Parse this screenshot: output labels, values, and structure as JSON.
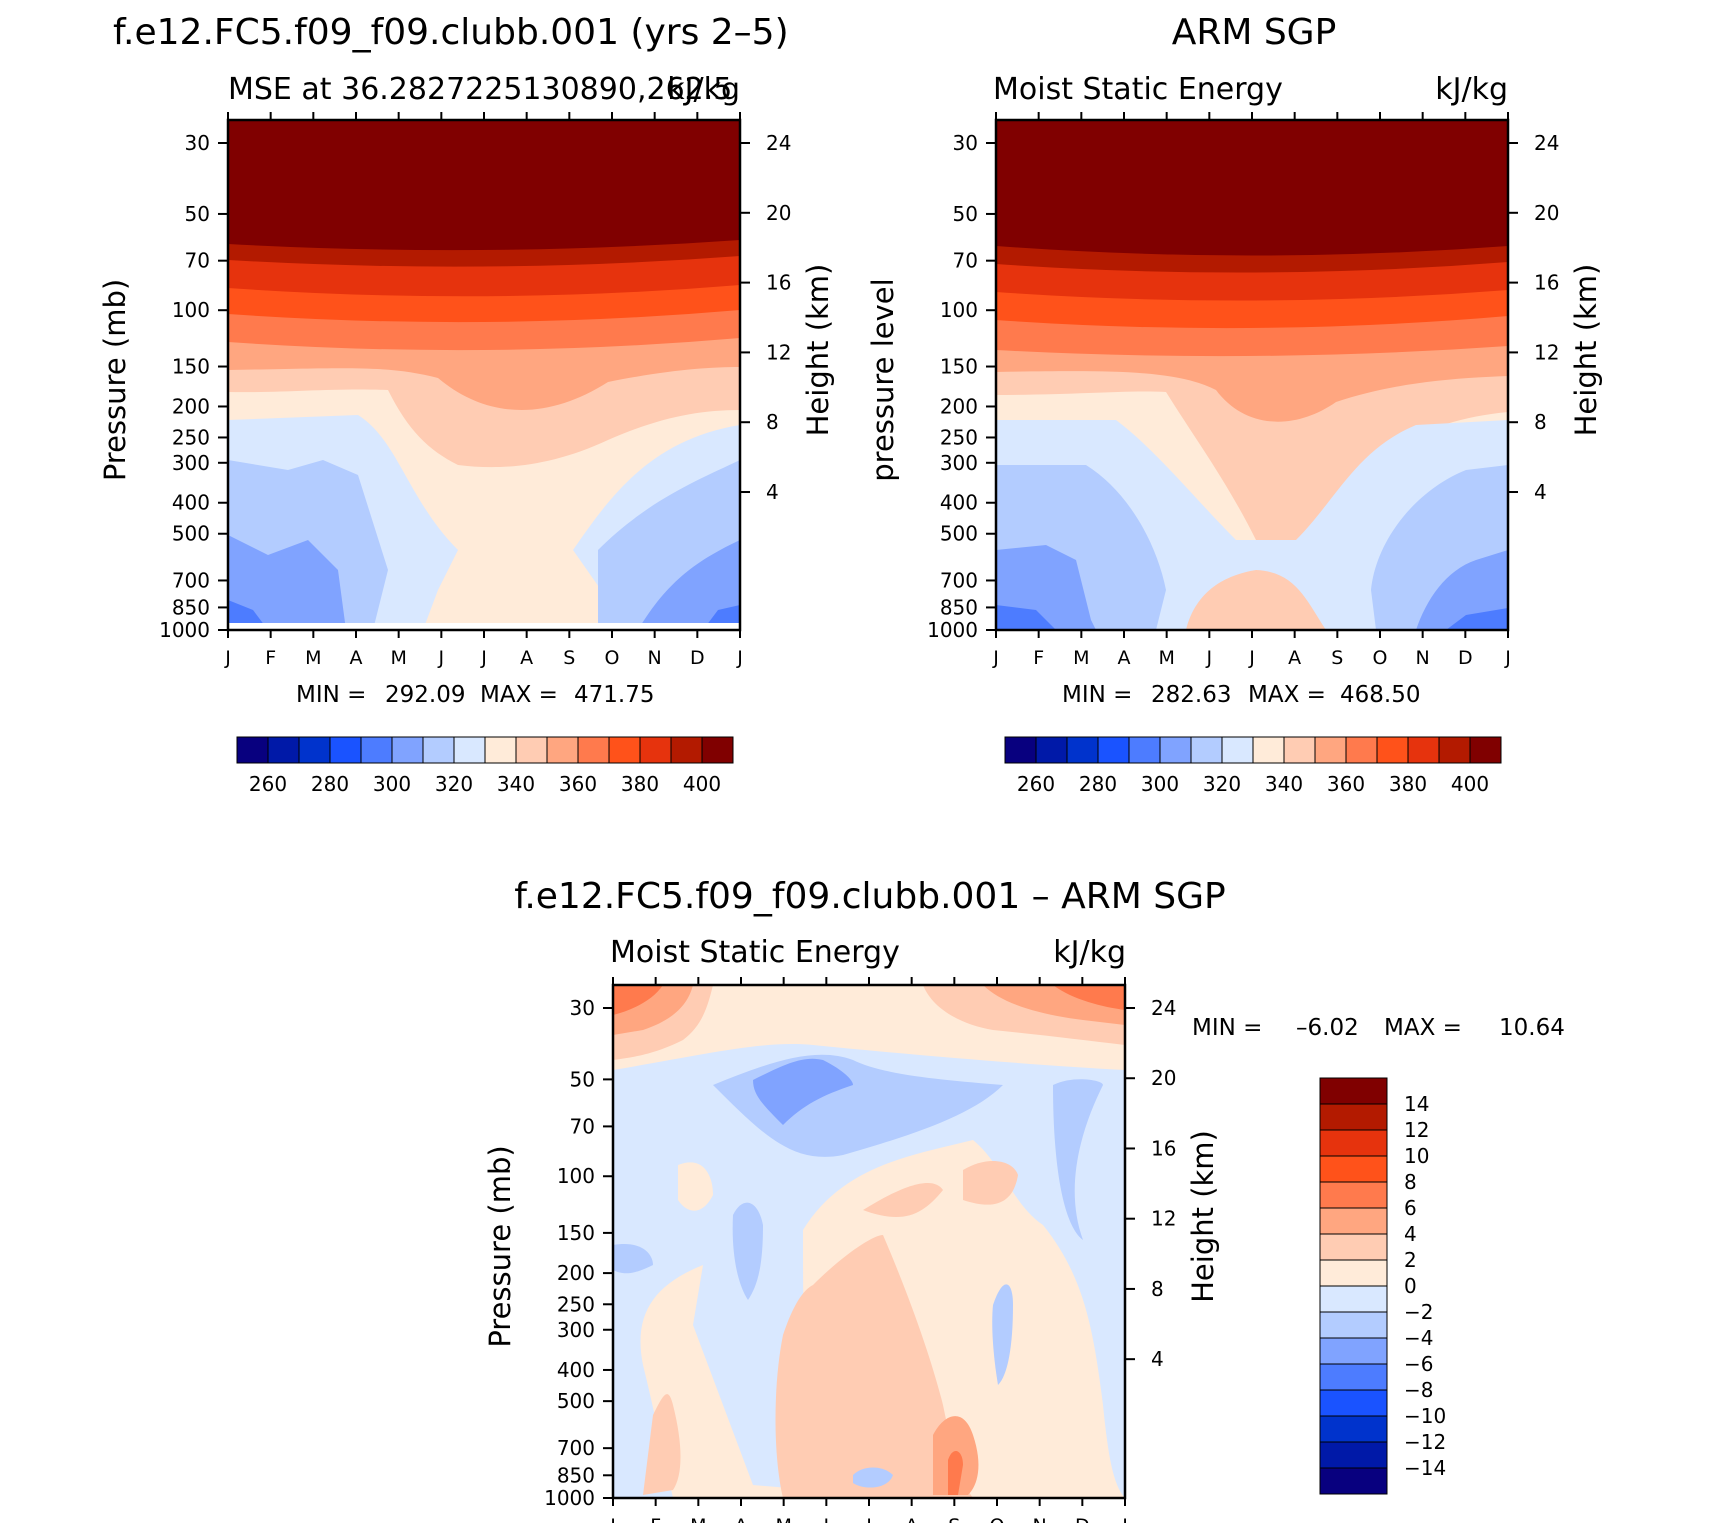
{
  "chart_data": [
    {
      "type": "contour",
      "panel": "model",
      "title": "f.e12.FC5.f09_f09.clubb.001 (yrs 2–5)",
      "subtitle_left": "MSE at 36.2827225130890,262.5",
      "subtitle_right": "kJ/kg",
      "ylabel": "Pressure (mb)",
      "ylabel_right": "Height (km)",
      "x_ticks": [
        "J",
        "F",
        "M",
        "A",
        "M",
        "J",
        "J",
        "A",
        "S",
        "O",
        "N",
        "D",
        "J"
      ],
      "pressure_levels": [
        30,
        50,
        70,
        100,
        150,
        200,
        250,
        300,
        400,
        500,
        700,
        850,
        1000
      ],
      "pressure_labels": [
        "30",
        "50",
        "70",
        "100",
        "150",
        "200",
        "250",
        "300",
        "400",
        "500",
        "700",
        "850",
        "1000"
      ],
      "height_ticks": [
        24,
        20,
        16,
        12,
        8,
        4
      ],
      "height_labels": [
        "24",
        "20",
        "16",
        "12",
        "8",
        "4"
      ],
      "min": "292.09",
      "max": "471.75",
      "min_label": "MIN =",
      "max_label": "MAX =",
      "contour_levels": [
        250,
        260,
        270,
        280,
        290,
        300,
        310,
        320,
        330,
        340,
        350,
        360,
        370,
        380,
        390,
        400
      ],
      "colorbar_labels": [
        "260",
        "280",
        "300",
        "320",
        "340",
        "360",
        "380",
        "400"
      ]
    },
    {
      "type": "contour",
      "panel": "obs",
      "title": "ARM SGP",
      "subtitle_left": "Moist Static Energy",
      "subtitle_right": "kJ/kg",
      "ylabel": "pressure level",
      "ylabel_right": "Height (km)",
      "x_ticks": [
        "J",
        "F",
        "M",
        "A",
        "M",
        "J",
        "J",
        "A",
        "S",
        "O",
        "N",
        "D",
        "J"
      ],
      "pressure_levels": [
        30,
        50,
        70,
        100,
        150,
        200,
        250,
        300,
        400,
        500,
        700,
        850,
        1000
      ],
      "pressure_labels": [
        "30",
        "50",
        "70",
        "100",
        "150",
        "200",
        "250",
        "300",
        "400",
        "500",
        "700",
        "850",
        "1000"
      ],
      "height_ticks": [
        24,
        20,
        16,
        12,
        8,
        4
      ],
      "height_labels": [
        "24",
        "20",
        "16",
        "12",
        "8",
        "4"
      ],
      "min": "282.63",
      "max": "468.50",
      "min_label": "MIN =",
      "max_label": "MAX =",
      "contour_levels": [
        250,
        260,
        270,
        280,
        290,
        300,
        310,
        320,
        330,
        340,
        350,
        360,
        370,
        380,
        390,
        400
      ],
      "colorbar_labels": [
        "260",
        "280",
        "300",
        "320",
        "340",
        "360",
        "380",
        "400"
      ]
    },
    {
      "type": "contour",
      "panel": "diff",
      "title": "f.e12.FC5.f09_f09.clubb.001 – ARM SGP",
      "subtitle_left": "Moist Static Energy",
      "subtitle_right": "kJ/kg",
      "ylabel": "Pressure (mb)",
      "ylabel_right": "Height (km)",
      "x_ticks": [
        "J",
        "F",
        "M",
        "A",
        "M",
        "J",
        "J",
        "A",
        "S",
        "O",
        "N",
        "D",
        "J"
      ],
      "pressure_levels": [
        30,
        50,
        70,
        100,
        150,
        200,
        250,
        300,
        400,
        500,
        700,
        850,
        1000
      ],
      "pressure_labels": [
        "30",
        "50",
        "70",
        "100",
        "150",
        "200",
        "250",
        "300",
        "400",
        "500",
        "700",
        "850",
        "1000"
      ],
      "height_ticks": [
        24,
        20,
        16,
        12,
        8,
        4
      ],
      "height_labels": [
        "24",
        "20",
        "16",
        "12",
        "8",
        "4"
      ],
      "min": "–6.02",
      "max": "10.64",
      "min_label": "MIN =",
      "max_label": "MAX =",
      "contour_levels": [
        -16,
        -14,
        -12,
        -10,
        -8,
        -6,
        -4,
        -2,
        0,
        2,
        4,
        6,
        8,
        10,
        12,
        14
      ],
      "colorbar_labels": [
        "14",
        "12",
        "10",
        "8",
        "6",
        "4",
        "2",
        "0",
        "−2",
        "−4",
        "−6",
        "−8",
        "−10",
        "−12",
        "−14"
      ]
    }
  ],
  "palette": [
    "#08007f",
    "#0019a8",
    "#0033cc",
    "#1a53ff",
    "#4d7cff",
    "#80a3ff",
    "#b3ccff",
    "#d9e8ff",
    "#ffebd9",
    "#ffccb3",
    "#ffa680",
    "#ff7a4d",
    "#ff521a",
    "#e6330d",
    "#b31a00",
    "#800000"
  ]
}
